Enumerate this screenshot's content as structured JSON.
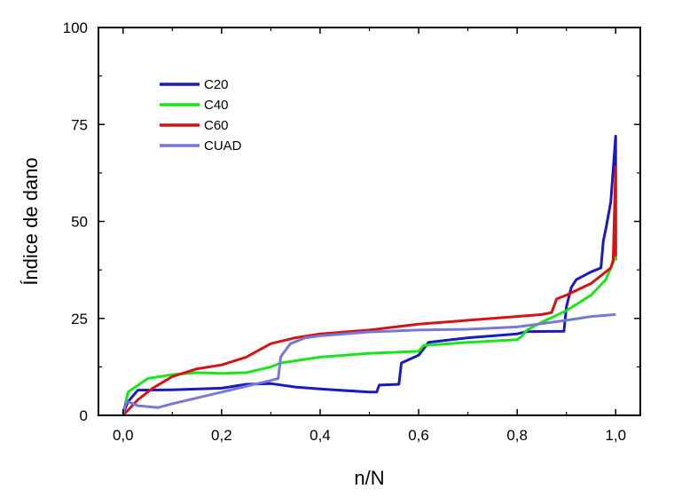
{
  "chart_data": {
    "type": "line",
    "title": "",
    "xlabel": "n/N",
    "ylabel": "Índice de dano",
    "xlim": [
      -0.05,
      1.05
    ],
    "ylim": [
      0,
      100
    ],
    "x_ticks": [
      0.0,
      0.2,
      0.4,
      0.6,
      0.8,
      1.0
    ],
    "x_tick_labels": [
      "0,0",
      "0,2",
      "0,4",
      "0,6",
      "0,8",
      "1,0"
    ],
    "y_ticks": [
      0,
      25,
      50,
      75,
      100
    ],
    "y_tick_labels": [
      "0",
      "25",
      "50",
      "75",
      "100"
    ],
    "grid": false,
    "legend_position": "top-left",
    "series": [
      {
        "name": "C20",
        "color": "#1a1abf",
        "points": [
          [
            0.0,
            0.5
          ],
          [
            0.01,
            3.5
          ],
          [
            0.03,
            6.5
          ],
          [
            0.1,
            6.6
          ],
          [
            0.2,
            7.0
          ],
          [
            0.25,
            8.0
          ],
          [
            0.3,
            8.2
          ],
          [
            0.35,
            7.3
          ],
          [
            0.4,
            6.8
          ],
          [
            0.5,
            6.0
          ],
          [
            0.515,
            6.0
          ],
          [
            0.52,
            7.8
          ],
          [
            0.56,
            8.0
          ],
          [
            0.565,
            13.5
          ],
          [
            0.6,
            15.5
          ],
          [
            0.62,
            18.8
          ],
          [
            0.7,
            20.0
          ],
          [
            0.8,
            21.0
          ],
          [
            0.82,
            21.6
          ],
          [
            0.895,
            21.7
          ],
          [
            0.9,
            28.0
          ],
          [
            0.91,
            33.0
          ],
          [
            0.92,
            35.0
          ],
          [
            0.95,
            37.0
          ],
          [
            0.97,
            38.0
          ],
          [
            0.975,
            45.0
          ],
          [
            0.98,
            48.0
          ],
          [
            0.99,
            55.0
          ],
          [
            1.0,
            72.0
          ],
          [
            1.0,
            40.0
          ]
        ]
      },
      {
        "name": "C40",
        "color": "#19e619",
        "points": [
          [
            0.0,
            0.3
          ],
          [
            0.01,
            6.0
          ],
          [
            0.05,
            9.5
          ],
          [
            0.1,
            10.5
          ],
          [
            0.15,
            11.0
          ],
          [
            0.2,
            10.8
          ],
          [
            0.25,
            11.0
          ],
          [
            0.3,
            12.5
          ],
          [
            0.32,
            13.5
          ],
          [
            0.4,
            15.0
          ],
          [
            0.5,
            16.0
          ],
          [
            0.6,
            16.5
          ],
          [
            0.61,
            18.0
          ],
          [
            0.7,
            18.8
          ],
          [
            0.8,
            19.5
          ],
          [
            0.81,
            20.5
          ],
          [
            0.82,
            22.0
          ],
          [
            0.85,
            24.0
          ],
          [
            0.9,
            27.0
          ],
          [
            0.95,
            31.0
          ],
          [
            0.98,
            35.0
          ],
          [
            1.0,
            41.0
          ],
          [
            1.0,
            40.0
          ]
        ]
      },
      {
        "name": "C60",
        "color": "#d41414",
        "points": [
          [
            0.0,
            0.0
          ],
          [
            0.03,
            4.0
          ],
          [
            0.06,
            7.0
          ],
          [
            0.1,
            10.0
          ],
          [
            0.15,
            12.0
          ],
          [
            0.2,
            13.0
          ],
          [
            0.25,
            15.0
          ],
          [
            0.3,
            18.5
          ],
          [
            0.35,
            20.0
          ],
          [
            0.4,
            21.0
          ],
          [
            0.5,
            22.0
          ],
          [
            0.6,
            23.5
          ],
          [
            0.7,
            24.5
          ],
          [
            0.8,
            25.5
          ],
          [
            0.85,
            26.0
          ],
          [
            0.87,
            26.5
          ],
          [
            0.88,
            30.0
          ],
          [
            0.9,
            31.0
          ],
          [
            0.95,
            34.0
          ],
          [
            0.98,
            37.0
          ],
          [
            0.99,
            38.0
          ],
          [
            0.995,
            40.0
          ],
          [
            1.0,
            64.0
          ],
          [
            1.0,
            41.0
          ]
        ]
      },
      {
        "name": "CUAD",
        "color": "#7878d6",
        "points": [
          [
            0.0,
            0.5
          ],
          [
            0.005,
            3.0
          ],
          [
            0.01,
            3.5
          ],
          [
            0.03,
            2.5
          ],
          [
            0.07,
            2.0
          ],
          [
            0.1,
            3.0
          ],
          [
            0.2,
            6.0
          ],
          [
            0.3,
            9.0
          ],
          [
            0.315,
            9.5
          ],
          [
            0.32,
            15.0
          ],
          [
            0.325,
            16.0
          ],
          [
            0.34,
            18.5
          ],
          [
            0.37,
            20.0
          ],
          [
            0.4,
            20.5
          ],
          [
            0.5,
            21.5
          ],
          [
            0.6,
            22.0
          ],
          [
            0.7,
            22.2
          ],
          [
            0.8,
            22.8
          ],
          [
            0.9,
            24.5
          ],
          [
            0.95,
            25.5
          ],
          [
            1.0,
            26.0
          ]
        ]
      }
    ]
  }
}
